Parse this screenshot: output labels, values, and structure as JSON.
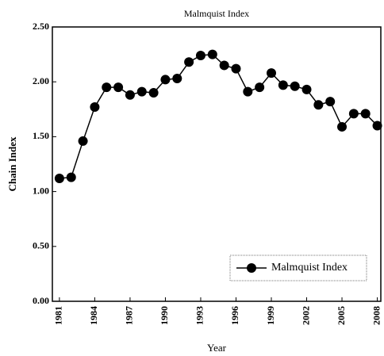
{
  "chart_data": {
    "type": "line",
    "title": "Malmquist Index",
    "xlabel": "Year",
    "ylabel": "Chain Index",
    "x": [
      1981,
      1982,
      1983,
      1984,
      1985,
      1986,
      1987,
      1988,
      1989,
      1990,
      1991,
      1992,
      1993,
      1994,
      1995,
      1996,
      1997,
      1998,
      1999,
      2000,
      2001,
      2002,
      2003,
      2004,
      2005,
      2006,
      2007,
      2008
    ],
    "series": [
      {
        "name": "Malmquist Index",
        "color": "#000000",
        "values": [
          1.12,
          1.13,
          1.46,
          1.77,
          1.95,
          1.95,
          1.88,
          1.91,
          1.9,
          2.02,
          2.03,
          2.18,
          2.24,
          2.25,
          2.15,
          2.12,
          1.91,
          1.95,
          2.08,
          1.97,
          1.96,
          1.93,
          1.79,
          1.82,
          1.59,
          1.71,
          1.71,
          1.6
        ]
      }
    ],
    "xlim": [
      1980.4,
      2008.3
    ],
    "xticks": [
      1981,
      1984,
      1987,
      1990,
      1993,
      1996,
      1999,
      2002,
      2005,
      2008
    ],
    "ylim": [
      0,
      2.5
    ],
    "yticks": [
      {
        "value": 0,
        "label": "0.00"
      },
      {
        "value": 0.5,
        "label": "0.50"
      },
      {
        "value": 1,
        "label": "1.00"
      },
      {
        "value": 1.5,
        "label": "1.50"
      },
      {
        "value": 2,
        "label": "2.00"
      },
      {
        "value": 2.5,
        "label": "2.50"
      }
    ],
    "legend": "lower right"
  }
}
